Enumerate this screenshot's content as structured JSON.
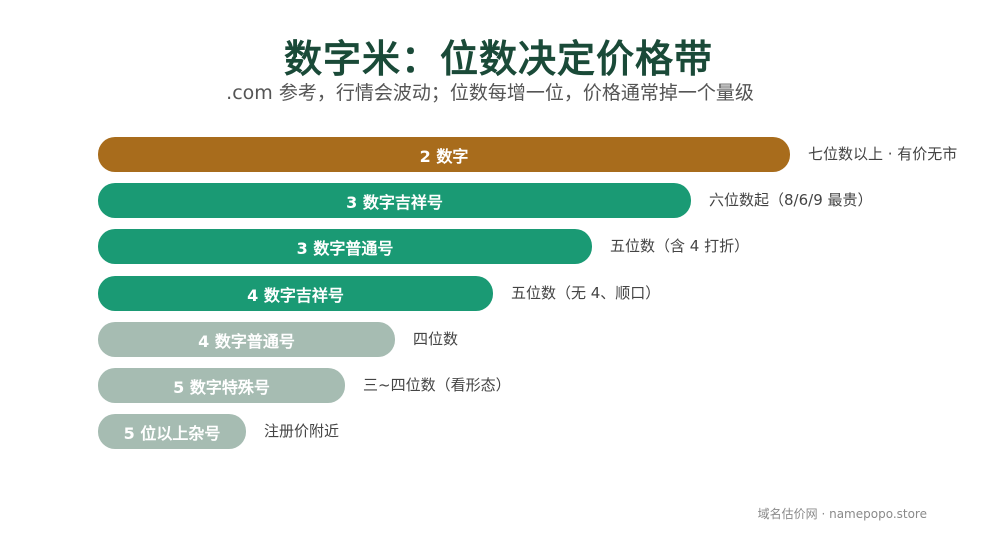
{
  "title": "数字米：位数决定价格带",
  "subtitle": ".com 参考，行情会波动；位数每增一位，价格通常掉一个量级",
  "footer": "域名估价网 · namepopo.store",
  "colors": {
    "brown": "#a86c1c",
    "green": "#1a9a74",
    "gray": "#a6bcb2",
    "title": "#1a4a38"
  },
  "chart_data": {
    "type": "bar",
    "orientation": "horizontal",
    "categories": [
      "2 数字",
      "3 数字吉祥号",
      "3 数字普通号",
      "4 数字吉祥号",
      "4 数字普通号",
      "5 数字特殊号",
      "5 位以上杂号"
    ],
    "values": [
      7,
      6,
      5,
      4,
      3,
      2.5,
      1.5
    ],
    "value_labels": [
      "七位数以上 · 有价无市",
      "六位数起（8/6/9 最贵）",
      "五位数（含 4 打折）",
      "五位数（无 4、顺口）",
      "四位数",
      "三~四位数（看形态）",
      "注册价附近"
    ],
    "bar_colors": [
      "#a86c1c",
      "#1a9a74",
      "#1a9a74",
      "#1a9a74",
      "#a6bcb2",
      "#a6bcb2",
      "#a6bcb2"
    ],
    "xlim": [
      0,
      7
    ],
    "grid": false
  }
}
